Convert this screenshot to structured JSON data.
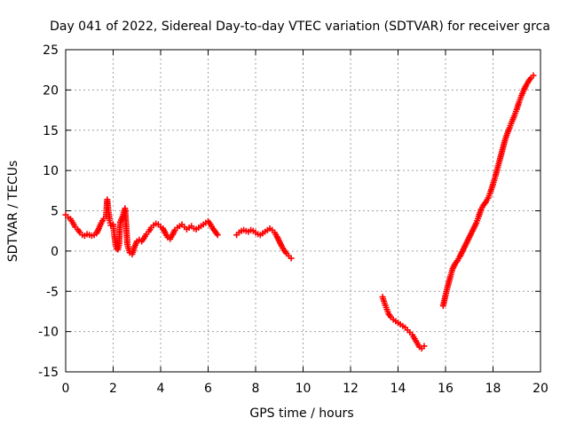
{
  "chart_data": {
    "type": "scatter",
    "title": "Day 041 of 2022, Sidereal Day-to-day VTEC variation (SDTVAR) for receiver grca",
    "xlabel": "GPS time / hours",
    "ylabel": "SDTVAR / TECUs",
    "xlim": [
      0,
      20
    ],
    "ylim": [
      -15,
      25
    ],
    "xticks": [
      0,
      2,
      4,
      6,
      8,
      10,
      12,
      14,
      16,
      18,
      20
    ],
    "yticks": [
      -15,
      -10,
      -5,
      0,
      5,
      10,
      15,
      20,
      25
    ],
    "xtick_labels": [
      "0",
      "2",
      "4",
      "6",
      "8",
      "10",
      "12",
      "14",
      "16",
      "18",
      "20"
    ],
    "ytick_labels": [
      "-15",
      "-10",
      "-5",
      "0",
      "5",
      "10",
      "15",
      "20",
      "25"
    ],
    "grid": true,
    "marker": "+",
    "color": "#ff0000",
    "series": [
      {
        "name": "SDTVAR",
        "x": [
          0.0,
          0.1,
          0.2,
          0.3,
          0.4,
          0.5,
          0.6,
          0.7,
          0.8,
          0.9,
          1.0,
          1.1,
          1.2,
          1.3,
          1.4,
          1.5,
          1.6,
          1.7,
          1.75,
          1.8,
          1.85,
          1.9,
          2.0,
          2.05,
          2.1,
          2.15,
          2.2,
          2.25,
          2.3,
          2.4,
          2.5,
          2.6,
          2.7,
          2.8,
          2.9,
          3.0,
          3.1,
          3.2,
          3.3,
          3.4,
          3.5,
          3.6,
          3.7,
          3.8,
          3.9,
          4.0,
          4.1,
          4.2,
          4.3,
          4.4,
          4.5,
          4.6,
          4.7,
          4.8,
          4.9,
          5.0,
          5.1,
          5.2,
          5.3,
          5.4,
          5.5,
          5.6,
          5.7,
          5.8,
          5.9,
          6.0,
          6.1,
          6.2,
          6.3,
          6.4,
          7.2,
          7.3,
          7.4,
          7.5,
          7.6,
          7.7,
          7.8,
          7.9,
          8.0,
          8.1,
          8.2,
          8.3,
          8.4,
          8.5,
          8.6,
          8.7,
          8.8,
          8.9,
          9.0,
          9.1,
          9.2,
          9.3,
          9.4,
          9.5,
          13.35,
          13.4,
          13.5,
          13.6,
          13.7,
          13.8,
          13.9,
          14.0,
          14.1,
          14.2,
          14.3,
          14.4,
          14.5,
          14.6,
          14.7,
          14.8,
          14.9,
          15.0,
          15.1,
          15.9,
          16.0,
          16.1,
          16.2,
          16.3,
          16.4,
          16.5,
          16.6,
          16.7,
          16.8,
          16.9,
          17.0,
          17.1,
          17.2,
          17.3,
          17.4,
          17.5,
          17.6,
          17.7,
          17.8,
          17.9,
          18.0,
          18.1,
          18.2,
          18.3,
          18.4,
          18.5,
          18.6,
          18.7,
          18.8,
          18.9,
          19.0,
          19.1,
          19.2,
          19.3,
          19.4,
          19.5,
          19.6,
          19.7
        ],
        "y": [
          4.5,
          4.2,
          4.0,
          3.5,
          3.0,
          2.7,
          2.3,
          2.0,
          1.9,
          2.1,
          2.0,
          1.9,
          2.0,
          2.2,
          2.8,
          3.5,
          4.0,
          4.3,
          6.4,
          5.0,
          3.8,
          3.2,
          3.3,
          2.0,
          0.8,
          0.3,
          0.2,
          0.9,
          3.6,
          4.3,
          5.3,
          0.8,
          -0.2,
          -0.4,
          0.5,
          1.2,
          1.4,
          1.2,
          1.6,
          2.1,
          2.4,
          2.9,
          3.2,
          3.4,
          3.3,
          3.0,
          2.8,
          2.2,
          1.7,
          1.5,
          2.0,
          2.6,
          2.9,
          3.1,
          3.3,
          3.0,
          2.7,
          2.9,
          3.1,
          2.8,
          2.7,
          2.9,
          3.1,
          3.3,
          3.5,
          3.7,
          3.3,
          2.8,
          2.4,
          2.0,
          2.0,
          2.3,
          2.5,
          2.6,
          2.5,
          2.4,
          2.6,
          2.5,
          2.3,
          2.1,
          2.0,
          2.2,
          2.4,
          2.6,
          2.8,
          2.6,
          2.3,
          1.8,
          1.2,
          0.6,
          0.1,
          -0.3,
          -0.6,
          -0.9,
          -5.7,
          -6.2,
          -7.0,
          -7.8,
          -8.2,
          -8.5,
          -8.7,
          -8.9,
          -9.1,
          -9.3,
          -9.5,
          -9.8,
          -10.1,
          -10.4,
          -10.9,
          -11.4,
          -11.9,
          -12.1,
          -11.8,
          -6.8,
          -5.5,
          -4.3,
          -3.2,
          -2.2,
          -1.6,
          -1.2,
          -0.7,
          -0.1,
          0.5,
          1.1,
          1.7,
          2.3,
          2.9,
          3.5,
          4.3,
          5.2,
          5.7,
          6.1,
          6.6,
          7.4,
          8.3,
          9.3,
          10.4,
          11.5,
          12.6,
          13.7,
          14.6,
          15.3,
          16.1,
          16.8,
          17.6,
          18.5,
          19.3,
          20.0,
          20.6,
          21.1,
          21.5,
          21.8
        ]
      }
    ]
  }
}
